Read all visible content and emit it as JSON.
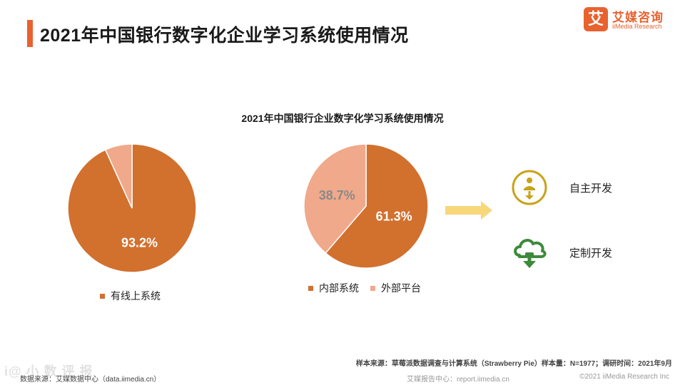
{
  "header": {
    "title": "2021年中国银行数字化企业学习系统使用情况"
  },
  "logo": {
    "mark": "艾",
    "name_cn": "艾媒咨询",
    "name_en": "iiMedia Research"
  },
  "colors": {
    "accent": "#e8622f",
    "dark_slice": "#d2702e",
    "light_slice": "#f0a98a",
    "arrow": "#f7d77a",
    "icon_gold": "#c8a31a",
    "icon_green": "#3d8a3a"
  },
  "chart_data": [
    {
      "type": "pie",
      "title": "2021年中国银行企业数字化学习系统使用情况",
      "slices": [
        {
          "label": "有线上系统",
          "value": 93.2,
          "display": "93.2%",
          "color": "#d2702e",
          "legend": true
        },
        {
          "label": "",
          "value": 6.8,
          "display": "",
          "color": "#f0a98a",
          "legend": false
        }
      ],
      "legend_position": "bottom"
    },
    {
      "type": "pie",
      "slices": [
        {
          "label": "内部系统",
          "value": 61.3,
          "display": "61.3%",
          "color": "#d2702e",
          "legend": true
        },
        {
          "label": "外部平台",
          "value": 38.7,
          "display": "38.7%",
          "color": "#f0a98a",
          "legend": true
        }
      ],
      "legend_position": "bottom"
    }
  ],
  "side_items": [
    {
      "label": "自主开发",
      "icon": "person-download-icon"
    },
    {
      "label": "定制开发",
      "icon": "cloud-download-icon"
    }
  ],
  "footer": {
    "sample_source": "样本来源：草莓派数据调查与计算系统（Strawberry Pie）样本量：N=1977；调研时间：2021年9月",
    "data_source": "数据来源：艾媒数据中心（data.iimedia.cn）",
    "report_center": "艾媒报告中心：report.iimedia.cn",
    "copyright": "©2021  iiMedia Research  Inc",
    "watermark": "i@ 小 数 评 报"
  }
}
